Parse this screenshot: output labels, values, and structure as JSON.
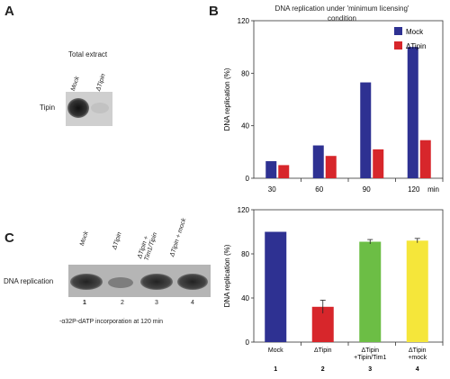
{
  "panel_a": {
    "letter": "A",
    "title": "Total extract",
    "lanes": [
      "Mock",
      "ΔTipin"
    ],
    "row_label": "Tipin"
  },
  "panel_c": {
    "letter": "C",
    "lanes": [
      "Mock",
      "ΔTipin",
      "ΔTipin + Tim1/Tipin",
      "ΔTipin + mock"
    ],
    "row_label": "DNA replication",
    "lane_numbers": [
      "1",
      "2",
      "3",
      "4"
    ],
    "caption": "-α32P-dATP incorporation at 120 min"
  },
  "panel_b_letter": "B",
  "chart_data": [
    {
      "type": "bar",
      "title": "DNA replication under 'minimum licensing' condition",
      "ylabel": "DNA replication (%)",
      "xlabel": "",
      "x_unit": "min",
      "categories": [
        "30",
        "60",
        "90",
        "120"
      ],
      "series": [
        {
          "name": "Mock",
          "color": "#2e3192",
          "values": [
            13,
            25,
            73,
            100
          ]
        },
        {
          "name": "ΔTipin",
          "color": "#d7262b",
          "values": [
            10,
            17,
            22,
            29
          ]
        }
      ],
      "ylim": [
        0,
        120
      ],
      "yticks": [
        0,
        40,
        80,
        120
      ],
      "legend": "top-right"
    },
    {
      "type": "bar",
      "ylabel": "DNA replication (%)",
      "categories": [
        "Mock",
        "ΔTipin",
        "ΔTipin +Tipin/Tim1",
        "ΔTipin +mock"
      ],
      "category_numbers": [
        "1",
        "2",
        "3",
        "4"
      ],
      "values": [
        100,
        32,
        91,
        92
      ],
      "errors": [
        0,
        6,
        2,
        2
      ],
      "colors": [
        "#2e3192",
        "#d7262b",
        "#6cbe45",
        "#f5e63a"
      ],
      "ylim": [
        0,
        120
      ],
      "yticks": [
        0,
        40,
        80,
        120
      ]
    }
  ]
}
